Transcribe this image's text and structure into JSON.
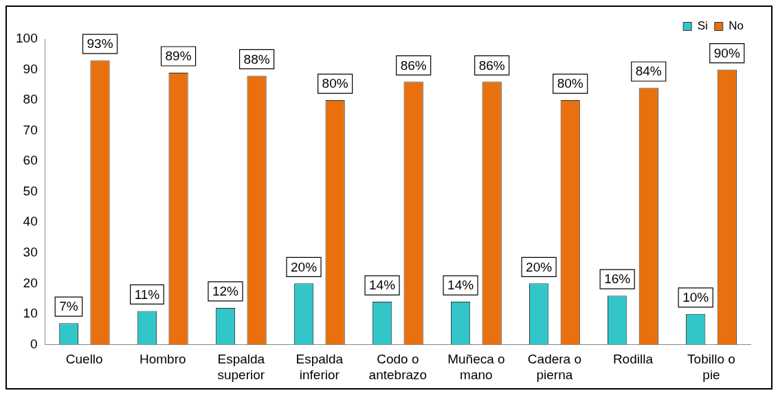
{
  "chart_data": {
    "type": "bar",
    "categories": [
      "Cuello",
      "Hombro",
      "Espalda superior",
      "Espalda inferior",
      "Codo o antebrazo",
      "Muñeca o mano",
      "Cadera o pierna",
      "Rodilla",
      "Tobillo o pie"
    ],
    "series": [
      {
        "name": "Si",
        "color": "#33c6c8",
        "values": [
          7,
          11,
          12,
          20,
          14,
          14,
          20,
          16,
          10
        ],
        "value_labels": [
          "7%",
          "11%",
          "12%",
          "20%",
          "14%",
          "14%",
          "20%",
          "16%",
          "10%"
        ]
      },
      {
        "name": "No",
        "color": "#e8700e",
        "values": [
          93,
          89,
          88,
          80,
          86,
          86,
          80,
          84,
          90
        ],
        "value_labels": [
          "93%",
          "89%",
          "88%",
          "80%",
          "86%",
          "86%",
          "80%",
          "84%",
          "90%"
        ]
      }
    ],
    "ylim": [
      0,
      100
    ],
    "yticks": [
      0,
      10,
      20,
      30,
      40,
      50,
      60,
      70,
      80,
      90,
      100
    ],
    "grid": false,
    "legend": "top right"
  }
}
